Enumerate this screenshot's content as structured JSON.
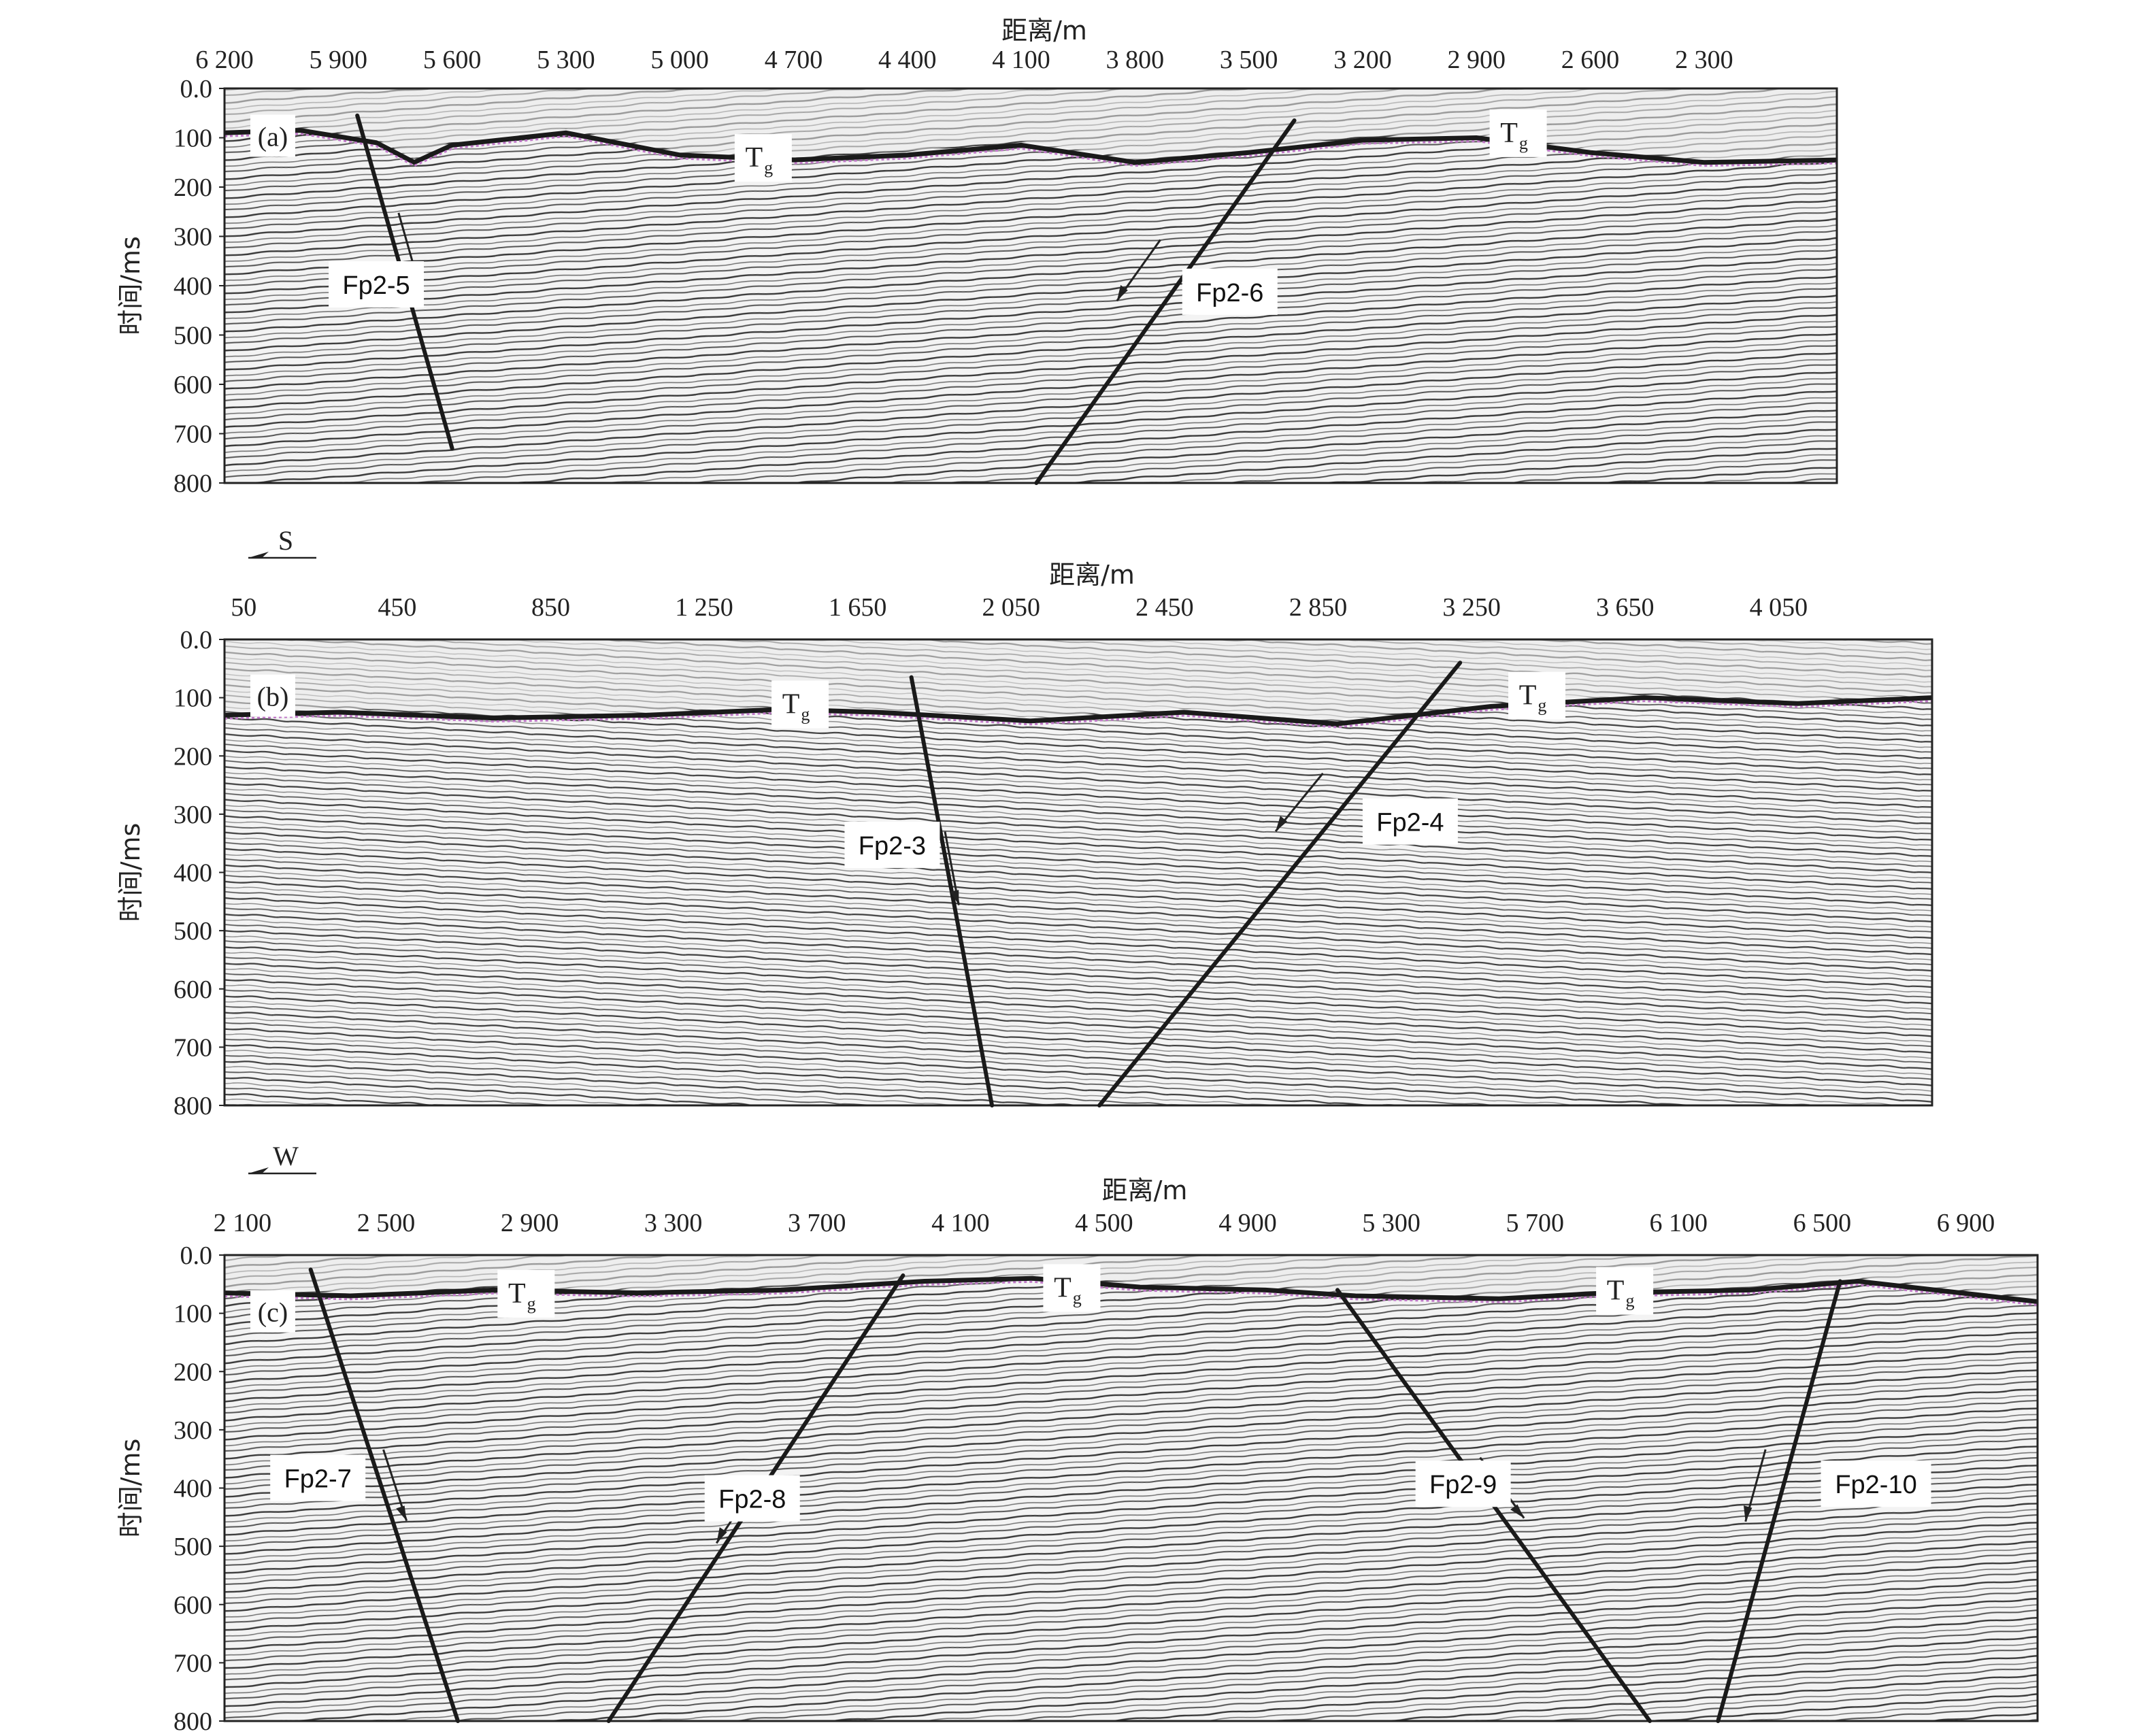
{
  "figure": {
    "panels": [
      {
        "id": "a",
        "panel_label": "(a)",
        "direction_label": "",
        "x_title": "距离/m",
        "y_title": "时间/ms",
        "x_ticks": [
          "6 200",
          "5 900",
          "5 600",
          "5 300",
          "5 000",
          "4 700",
          "4 400",
          "4 100",
          "3 800",
          "3 500",
          "3 200",
          "2 900",
          "2 600",
          "2 300"
        ],
        "x_range": [
          6200,
          1950
        ],
        "y_ticks": [
          "0.0",
          "100",
          "200",
          "300",
          "400",
          "500",
          "600",
          "700",
          "800"
        ],
        "y_range": [
          0,
          800
        ],
        "horizon_labels": [
          {
            "text": "T",
            "sub": "g",
            "x": 4780,
            "t": 145
          },
          {
            "text": "T",
            "sub": "g",
            "x": 2790,
            "t": 95
          }
        ],
        "horizon": [
          [
            6200,
            90
          ],
          [
            6000,
            85
          ],
          [
            5800,
            110
          ],
          [
            5700,
            150
          ],
          [
            5600,
            115
          ],
          [
            5300,
            90
          ],
          [
            5000,
            135
          ],
          [
            4700,
            145
          ],
          [
            4400,
            135
          ],
          [
            4100,
            115
          ],
          [
            3800,
            150
          ],
          [
            3500,
            130
          ],
          [
            3200,
            105
          ],
          [
            2900,
            100
          ],
          [
            2600,
            130
          ],
          [
            2300,
            150
          ],
          [
            1950,
            145
          ]
        ],
        "faults": [
          {
            "label": "Fp2-5",
            "top": [
              5850,
              55
            ],
            "bottom": [
              5600,
              730
            ],
            "arrow": [
              5690,
              320
            ],
            "arrow_dir": 1,
            "label_pos": [
              5800,
              400
            ]
          },
          {
            "label": "Fp2-6",
            "top": [
              3380,
              65
            ],
            "bottom": [
              4060,
              800
            ],
            "arrow": [
              3770,
              380
            ],
            "arrow_dir": -1,
            "label_pos": [
              3550,
              415
            ]
          }
        ]
      },
      {
        "id": "b",
        "panel_label": "(b)",
        "direction_label": "S",
        "x_title": "距离/m",
        "y_title": "时间/ms",
        "x_ticks": [
          "50",
          "450",
          "850",
          "1 250",
          "1 650",
          "2 050",
          "2 450",
          "2 850",
          "3 250",
          "3 650",
          "4 050"
        ],
        "x_range": [
          0,
          4450
        ],
        "y_ticks": [
          "0.0",
          "100",
          "200",
          "300",
          "400",
          "500",
          "600",
          "700",
          "800"
        ],
        "y_range": [
          0,
          800
        ],
        "horizon_labels": [
          {
            "text": "T",
            "sub": "g",
            "x": 1500,
            "t": 115
          },
          {
            "text": "T",
            "sub": "g",
            "x": 3420,
            "t": 100
          }
        ],
        "horizon": [
          [
            0,
            130
          ],
          [
            300,
            125
          ],
          [
            700,
            135
          ],
          [
            1100,
            130
          ],
          [
            1450,
            120
          ],
          [
            1700,
            125
          ],
          [
            2100,
            140
          ],
          [
            2500,
            125
          ],
          [
            2900,
            145
          ],
          [
            3100,
            130
          ],
          [
            3300,
            115
          ],
          [
            3700,
            100
          ],
          [
            4100,
            110
          ],
          [
            4450,
            100
          ]
        ],
        "faults": [
          {
            "label": "Fp2-3",
            "top": [
              1790,
              65
            ],
            "bottom": [
              2000,
              800
            ],
            "arrow": [
              1920,
              390
            ],
            "arrow_dir": 1,
            "label_pos": [
              1740,
              355
            ]
          },
          {
            "label": "Fp2-4",
            "top": [
              3220,
              40
            ],
            "bottom": [
              2280,
              800
            ],
            "arrow": [
              2820,
              290
            ],
            "arrow_dir": -1,
            "label_pos": [
              3090,
              315
            ]
          }
        ]
      },
      {
        "id": "c",
        "panel_label": "(c)",
        "direction_label": "W",
        "x_title": "距离/m",
        "y_title": "时间/ms",
        "x_ticks": [
          "2 100",
          "2 500",
          "2 900",
          "3 300",
          "3 700",
          "4 100",
          "4 500",
          "4 900",
          "5 300",
          "5 700",
          "6 100",
          "6 500",
          "6 900"
        ],
        "x_range": [
          2050,
          7100
        ],
        "y_ticks": [
          "0.0",
          "100",
          "200",
          "300",
          "400",
          "500",
          "600",
          "700",
          "800"
        ],
        "y_range": [
          0,
          800
        ],
        "horizon_labels": [
          {
            "text": "T",
            "sub": "g",
            "x": 2890,
            "t": 70
          },
          {
            "text": "T",
            "sub": "g",
            "x": 4410,
            "t": 60
          },
          {
            "text": "T",
            "sub": "g",
            "x": 5950,
            "t": 65
          }
        ],
        "horizon": [
          [
            2050,
            65
          ],
          [
            2400,
            70
          ],
          [
            2800,
            60
          ],
          [
            3200,
            65
          ],
          [
            3600,
            60
          ],
          [
            4000,
            45
          ],
          [
            4300,
            40
          ],
          [
            4600,
            55
          ],
          [
            4950,
            60
          ],
          [
            5200,
            70
          ],
          [
            5600,
            75
          ],
          [
            5900,
            65
          ],
          [
            6300,
            60
          ],
          [
            6600,
            45
          ],
          [
            7100,
            80
          ]
        ],
        "faults": [
          {
            "label": "Fp2-7",
            "top": [
              2290,
              25
            ],
            "bottom": [
              2700,
              800
            ],
            "arrow": [
              2550,
              390
            ],
            "arrow_dir": 1,
            "label_pos": [
              2310,
              385
            ]
          },
          {
            "label": "Fp2-8",
            "top": [
              3940,
              35
            ],
            "bottom": [
              3120,
              800
            ],
            "arrow": [
              3500,
              450
            ],
            "arrow_dir": -1,
            "label_pos": [
              3520,
              420
            ]
          },
          {
            "label": "Fp2-9",
            "top": [
              5150,
              60
            ],
            "bottom": [
              6020,
              800
            ],
            "arrow": [
              5630,
              390
            ],
            "arrow_dir": 1,
            "label_pos": [
              5500,
              395
            ]
          },
          {
            "label": "Fp2-10",
            "top": [
              6550,
              45
            ],
            "bottom": [
              6210,
              800
            ],
            "arrow": [
              6340,
              400
            ],
            "arrow_dir": -1,
            "label_pos": [
              6650,
              395
            ]
          }
        ]
      }
    ]
  },
  "colors": {
    "horizon_line": "#1a1a1a",
    "horizon_trace": "#c078c8",
    "fault_line": "#1a1a1a",
    "label_box": "#ffffff"
  }
}
